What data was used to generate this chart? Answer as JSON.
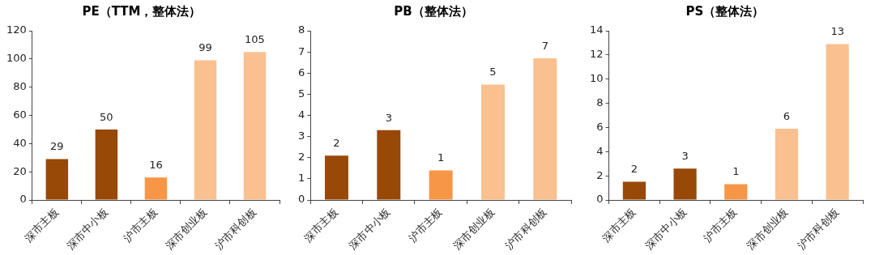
{
  "chart_data": [
    {
      "type": "bar",
      "title": "PE（TTM，整体法）",
      "categories": [
        "深市主板",
        "深市中小板",
        "沪市主板",
        "深市创业板",
        "沪市科创板"
      ],
      "values": [
        29,
        50,
        16,
        99,
        105
      ],
      "colors": [
        "#984807",
        "#984807",
        "#f79646",
        "#fac090",
        "#fac090"
      ],
      "value_labels": [
        "29",
        "50",
        "16",
        "99",
        "105"
      ],
      "ylim": [
        0,
        120
      ],
      "yticks": [
        0,
        20,
        40,
        60,
        80,
        100,
        120
      ]
    },
    {
      "type": "bar",
      "title": "PB（整体法）",
      "categories": [
        "深市主板",
        "深市中小板",
        "沪市主板",
        "深市创业板",
        "沪市科创板"
      ],
      "values": [
        2.1,
        3.3,
        1.4,
        5.45,
        6.7
      ],
      "colors": [
        "#984807",
        "#984807",
        "#f79646",
        "#fac090",
        "#fac090"
      ],
      "value_labels": [
        "2",
        "3",
        "1",
        "5",
        "7"
      ],
      "ylim": [
        0,
        8
      ],
      "yticks": [
        0,
        1,
        2,
        3,
        4,
        5,
        6,
        7,
        8
      ]
    },
    {
      "type": "bar",
      "title": "PS（整体法）",
      "categories": [
        "深市主板",
        "深市中小板",
        "沪市主板",
        "深市创业板",
        "沪市科创板"
      ],
      "values": [
        1.5,
        2.6,
        1.3,
        5.9,
        12.9
      ],
      "colors": [
        "#984807",
        "#984807",
        "#f79646",
        "#fac090",
        "#fac090"
      ],
      "value_labels": [
        "2",
        "3",
        "1",
        "6",
        "13"
      ],
      "ylim": [
        0,
        14
      ],
      "yticks": [
        0,
        2,
        4,
        6,
        8,
        10,
        12,
        14
      ]
    }
  ]
}
